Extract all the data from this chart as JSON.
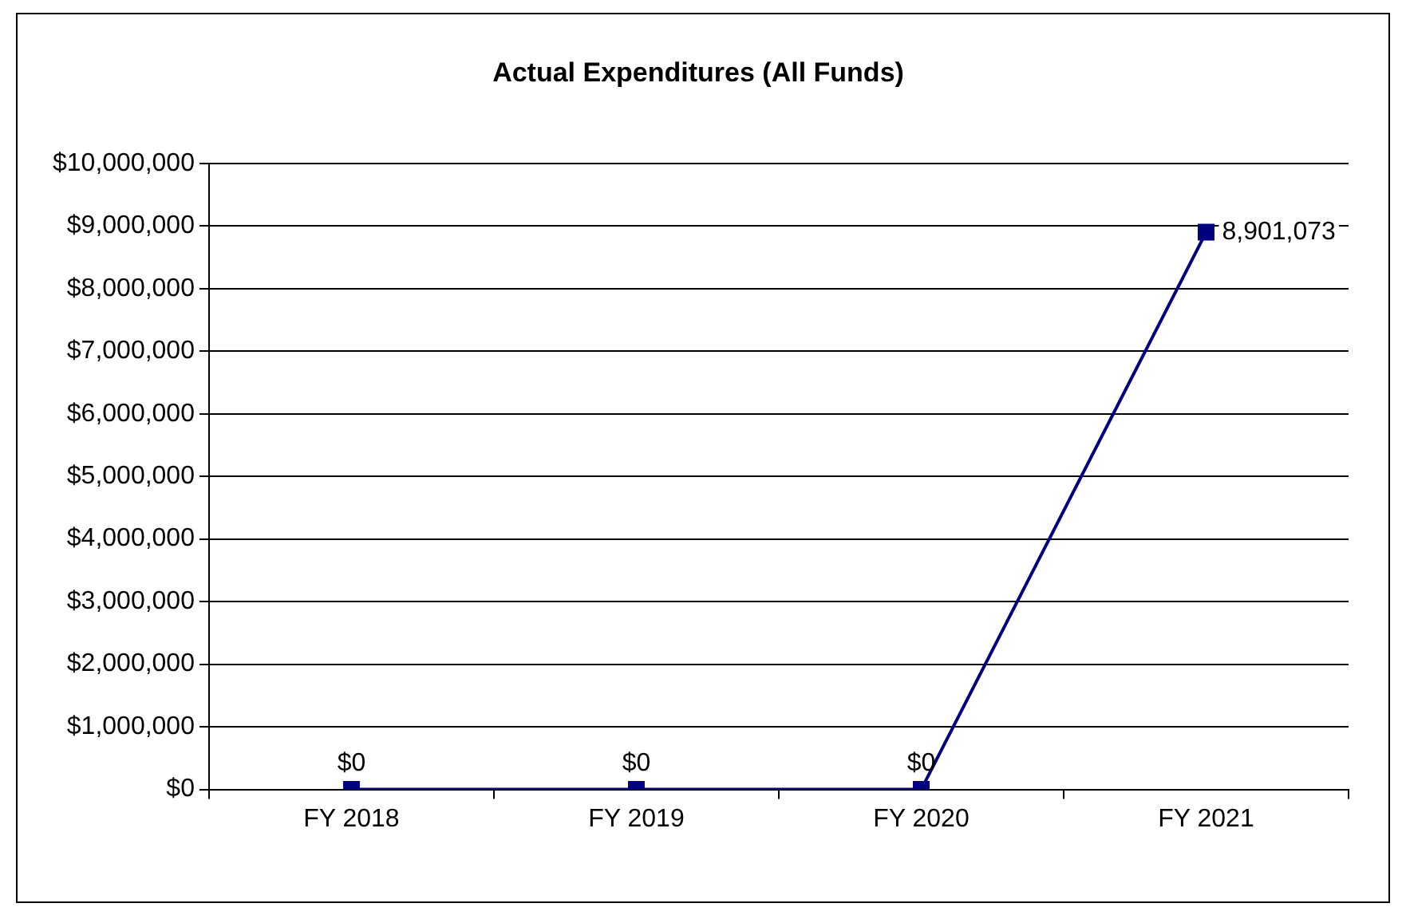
{
  "chart_data": {
    "type": "line",
    "title": "Actual Expenditures (All Funds)",
    "categories": [
      "FY 2018",
      "FY 2019",
      "FY 2020",
      "FY 2021"
    ],
    "series": [
      {
        "color": "#000080",
        "values": [
          0,
          0,
          0,
          8901073
        ],
        "value_labels": [
          "$0",
          "$0",
          "$0",
          "8,901,073"
        ]
      }
    ],
    "ylim": [
      0,
      10000000
    ],
    "yticks": [
      {
        "value": 0,
        "label": "$0"
      },
      {
        "value": 1000000,
        "label": "$1,000,000"
      },
      {
        "value": 2000000,
        "label": "$2,000,000"
      },
      {
        "value": 3000000,
        "label": "$3,000,000"
      },
      {
        "value": 4000000,
        "label": "$4,000,000"
      },
      {
        "value": 5000000,
        "label": "$5,000,000"
      },
      {
        "value": 6000000,
        "label": "$6,000,000"
      },
      {
        "value": 7000000,
        "label": "$7,000,000"
      },
      {
        "value": 8000000,
        "label": "$8,000,000"
      },
      {
        "value": 9000000,
        "label": "$9,000,000"
      },
      {
        "value": 10000000,
        "label": "$10,000,000"
      }
    ],
    "grid": "y",
    "legend": false,
    "marker": "square",
    "line_style": "solid"
  }
}
